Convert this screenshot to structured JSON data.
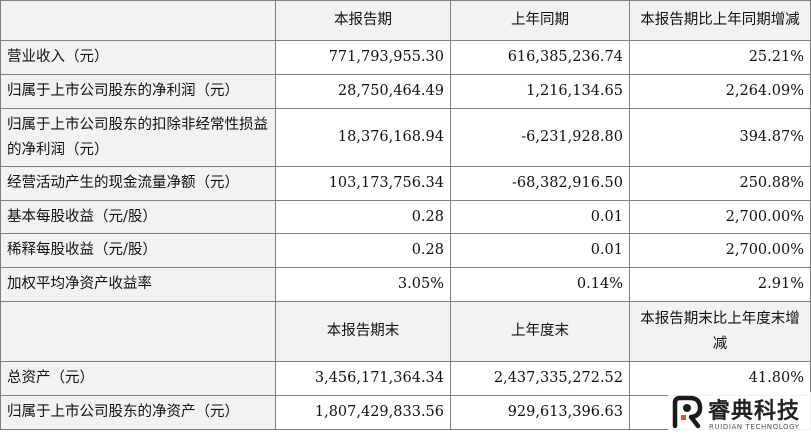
{
  "table": {
    "header1": [
      "",
      "本报告期",
      "上年同期",
      "本报告期比上年同期增减"
    ],
    "rows1": [
      [
        "营业收入（元）",
        "771,793,955.30",
        "616,385,236.74",
        "25.21%"
      ],
      [
        "归属于上市公司股东的净利润（元）",
        "28,750,464.49",
        "1,216,134.65",
        "2,264.09%"
      ],
      [
        "归属于上市公司股东的扣除非经常性损益的净利润（元）",
        "18,376,168.94",
        "-6,231,928.80",
        "394.87%"
      ],
      [
        "经营活动产生的现金流量净额（元）",
        "103,173,756.34",
        "-68,382,916.50",
        "250.88%"
      ],
      [
        "基本每股收益（元/股）",
        "0.28",
        "0.01",
        "2,700.00%"
      ],
      [
        "稀释每股收益（元/股）",
        "0.28",
        "0.01",
        "2,700.00%"
      ],
      [
        "加权平均净资产收益率",
        "3.05%",
        "0.14%",
        "2.91%"
      ]
    ],
    "header2": [
      "",
      "本报告期末",
      "上年度末",
      "本报告期末比上年度末增减"
    ],
    "rows2": [
      [
        "总资产（元）",
        "3,456,171,364.34",
        "2,437,335,272.52",
        "41.80%"
      ],
      [
        "归属于上市公司股东的净资产（元）",
        "1,807,429,833.56",
        "929,613,396.63",
        ""
      ]
    ]
  },
  "watermark": {
    "cn": "睿典科技",
    "en": "RUIDIAN TECHNOLOGY",
    "icon": "ruidian-logo-icon"
  }
}
